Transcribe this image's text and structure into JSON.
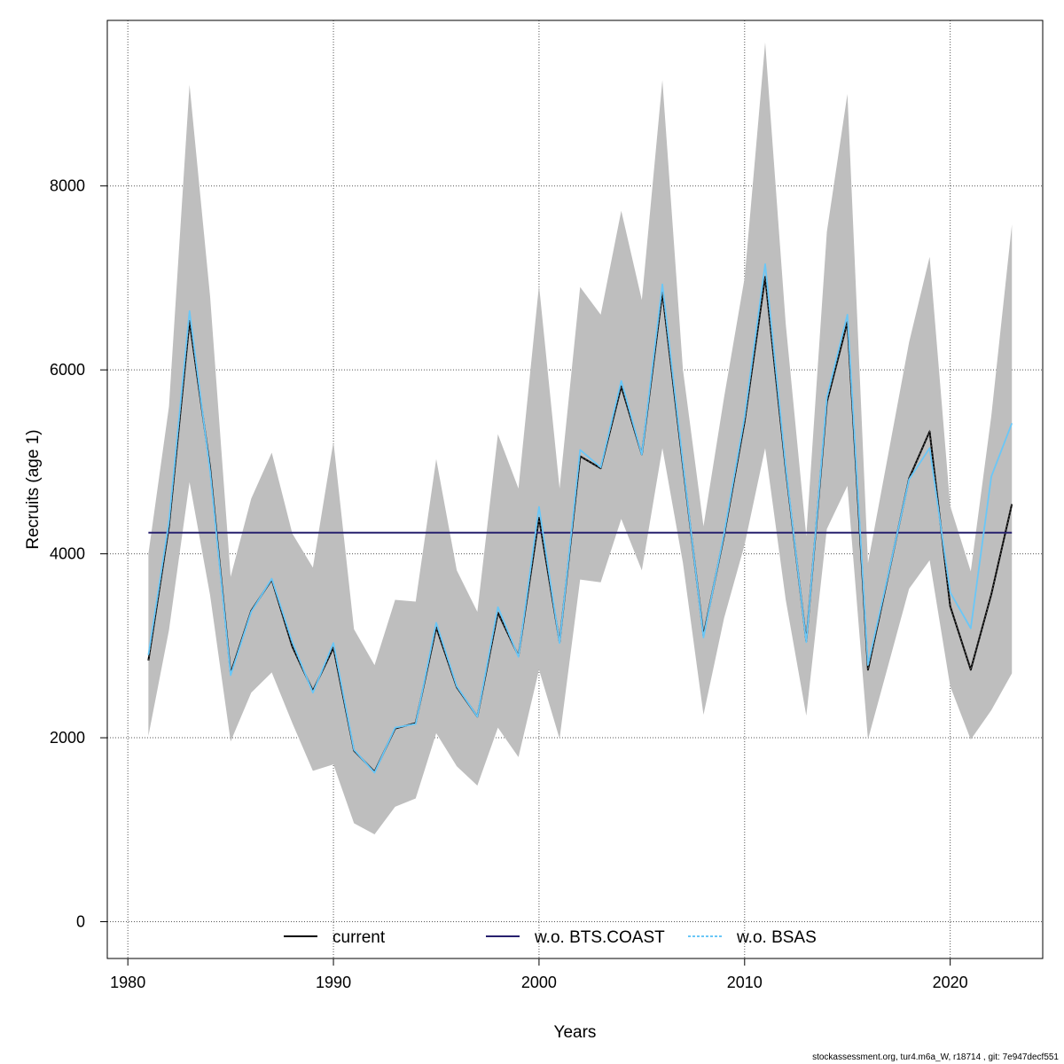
{
  "colors": {
    "band": "#bebebe",
    "current": "#000000",
    "wo_bts_coast": "#27206e",
    "wo_bsas": "#6ac7f7",
    "grid": "#555555"
  },
  "footer_text": "stockassessment.org, tur4.m6a_W, r18714 , git: 7e947decf551",
  "chart_data": {
    "type": "line",
    "xlabel": "Years",
    "ylabel": "Recruits (age 1)",
    "xlim": [
      1979,
      2024.5
    ],
    "ylim": [
      -400,
      9800
    ],
    "x_ticks": [
      1980,
      1990,
      2000,
      2010,
      2020
    ],
    "y_ticks": [
      0,
      2000,
      4000,
      6000,
      8000
    ],
    "x_tick_labels": [
      "1980",
      "1990",
      "2000",
      "2010",
      "2020"
    ],
    "y_tick_labels": [
      "0",
      "2000",
      "4000",
      "6000",
      "8000"
    ],
    "grid": true,
    "legend_position": "bottom",
    "years": [
      1981,
      1982,
      1983,
      1984,
      1985,
      1986,
      1987,
      1988,
      1989,
      1990,
      1991,
      1992,
      1993,
      1994,
      1995,
      1996,
      1997,
      1998,
      1999,
      2000,
      2001,
      2002,
      2003,
      2004,
      2005,
      2006,
      2007,
      2008,
      2009,
      2010,
      2011,
      2012,
      2013,
      2014,
      2015,
      2016,
      2017,
      2018,
      2019,
      2020,
      2021,
      2022,
      2023
    ],
    "band": {
      "name": "confidence interval",
      "upper": [
        4000,
        5600,
        9100,
        6800,
        3750,
        4600,
        5100,
        4220,
        3850,
        5220,
        3180,
        2790,
        3500,
        3480,
        5030,
        3820,
        3370,
        5300,
        4710,
        6920,
        4710,
        6900,
        6600,
        7730,
        6760,
        9150,
        6000,
        4300,
        5700,
        7000,
        9560,
        6500,
        4190,
        7500,
        9000,
        3900,
        5100,
        6300,
        7230,
        4520,
        3810,
        5500,
        7580
      ],
      "lower": [
        2020,
        3170,
        4780,
        3550,
        1960,
        2490,
        2710,
        2160,
        1640,
        1710,
        1070,
        950,
        1250,
        1340,
        2050,
        1690,
        1480,
        2110,
        1790,
        2740,
        1990,
        3720,
        3690,
        4380,
        3820,
        5150,
        3900,
        2250,
        3300,
        4100,
        5150,
        3500,
        2240,
        4270,
        4740,
        1980,
        2800,
        3620,
        3930,
        2560,
        1980,
        2300,
        2700
      ]
    },
    "series": [
      {
        "name": "current",
        "values": [
          2840,
          4300,
          6530,
          4940,
          2700,
          3380,
          3720,
          2990,
          2510,
          2980,
          1860,
          1630,
          2100,
          2160,
          3200,
          2550,
          2230,
          3360,
          2890,
          4390,
          3040,
          5060,
          4930,
          5820,
          5080,
          6840,
          4960,
          3110,
          4200,
          5440,
          7010,
          4920,
          3050,
          5650,
          6520,
          2740,
          3780,
          4820,
          5330,
          3430,
          2740,
          3560,
          4540
        ]
      },
      {
        "name": "w.o. BTS.COAST",
        "values": [
          4230,
          4230,
          4230,
          4230,
          4230,
          4230,
          4230,
          4230,
          4230,
          4230,
          4230,
          4230,
          4230,
          4230,
          4230,
          4230,
          4230,
          4230,
          4230,
          4230,
          4230,
          4230,
          4230,
          4230,
          4230,
          4230,
          4230,
          4230,
          4230,
          4230,
          4230,
          4230,
          4230,
          4230,
          4230,
          4230,
          4230,
          4230,
          4230,
          4230,
          4230,
          4230,
          4230
        ]
      },
      {
        "name": "w.o. BSAS",
        "values": [
          2900,
          4350,
          6640,
          4900,
          2680,
          3370,
          3730,
          3040,
          2490,
          3030,
          1870,
          1620,
          2110,
          2150,
          3250,
          2560,
          2230,
          3420,
          2880,
          4510,
          3030,
          5130,
          4940,
          5880,
          5080,
          6930,
          4990,
          3090,
          4220,
          5490,
          7150,
          4950,
          3040,
          5700,
          6600,
          2790,
          3790,
          4810,
          5150,
          3580,
          3190,
          4840,
          5420
        ]
      }
    ],
    "legend": [
      {
        "label": "current",
        "style": "solid"
      },
      {
        "label": "w.o. BTS.COAST",
        "style": "solid"
      },
      {
        "label": "w.o. BSAS",
        "style": "dotted"
      }
    ]
  }
}
